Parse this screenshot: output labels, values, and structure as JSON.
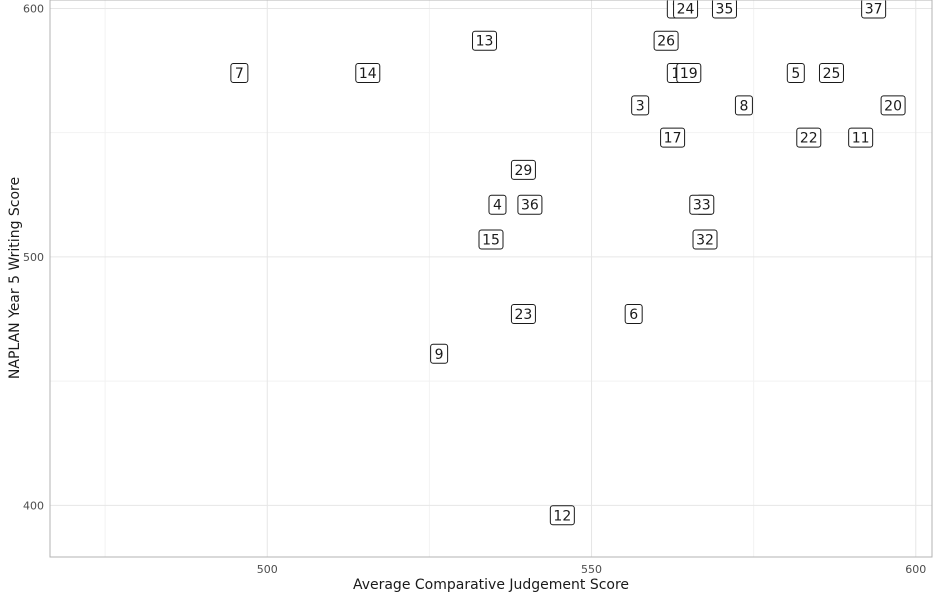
{
  "chart_data": {
    "type": "scatter",
    "title": "",
    "xlabel": "Average Comparative Judgement Score",
    "ylabel": "NAPLAN Year 5 Writing Score",
    "xlim": [
      466.5,
      602.5
    ],
    "ylim": [
      379.2,
      603.4
    ],
    "x_ticks": [
      500,
      550,
      600
    ],
    "y_ticks": [
      400,
      500,
      600
    ],
    "grid": true,
    "legend": "none",
    "point_style": "text-label",
    "points": [
      {
        "label": "7",
        "x": 495.7,
        "y": 574
      },
      {
        "label": "14",
        "x": 515.5,
        "y": 574
      },
      {
        "label": "13",
        "x": 533.5,
        "y": 587
      },
      {
        "label": "29",
        "x": 539.5,
        "y": 535
      },
      {
        "label": "4",
        "x": 535.5,
        "y": 521
      },
      {
        "label": "36",
        "x": 540.5,
        "y": 521
      },
      {
        "label": "15",
        "x": 534.5,
        "y": 507
      },
      {
        "label": "23",
        "x": 539.5,
        "y": 477
      },
      {
        "label": "9",
        "x": 526.5,
        "y": 461
      },
      {
        "label": "12",
        "x": 545.5,
        "y": 396
      },
      {
        "label": "1",
        "x": 563,
        "y": 600
      },
      {
        "label": "24",
        "x": 564.5,
        "y": 600
      },
      {
        "label": "35",
        "x": 570.5,
        "y": 600
      },
      {
        "label": "37",
        "x": 593.5,
        "y": 600
      },
      {
        "label": "26",
        "x": 561.5,
        "y": 587
      },
      {
        "label": "1",
        "x": 563,
        "y": 574
      },
      {
        "label": "19",
        "x": 565,
        "y": 574
      },
      {
        "label": "5",
        "x": 581.5,
        "y": 574
      },
      {
        "label": "25",
        "x": 587,
        "y": 574
      },
      {
        "label": "3",
        "x": 557.5,
        "y": 561
      },
      {
        "label": "8",
        "x": 573.5,
        "y": 561
      },
      {
        "label": "20",
        "x": 596.5,
        "y": 561
      },
      {
        "label": "17",
        "x": 562.5,
        "y": 548
      },
      {
        "label": "22",
        "x": 583.5,
        "y": 548
      },
      {
        "label": "11",
        "x": 591.5,
        "y": 548
      },
      {
        "label": "3",
        "x": 567.5,
        "y": 521
      },
      {
        "label": "33",
        "x": 567,
        "y": 521
      },
      {
        "label": "32",
        "x": 567.5,
        "y": 507
      },
      {
        "label": "6",
        "x": 556.5,
        "y": 477
      }
    ]
  }
}
